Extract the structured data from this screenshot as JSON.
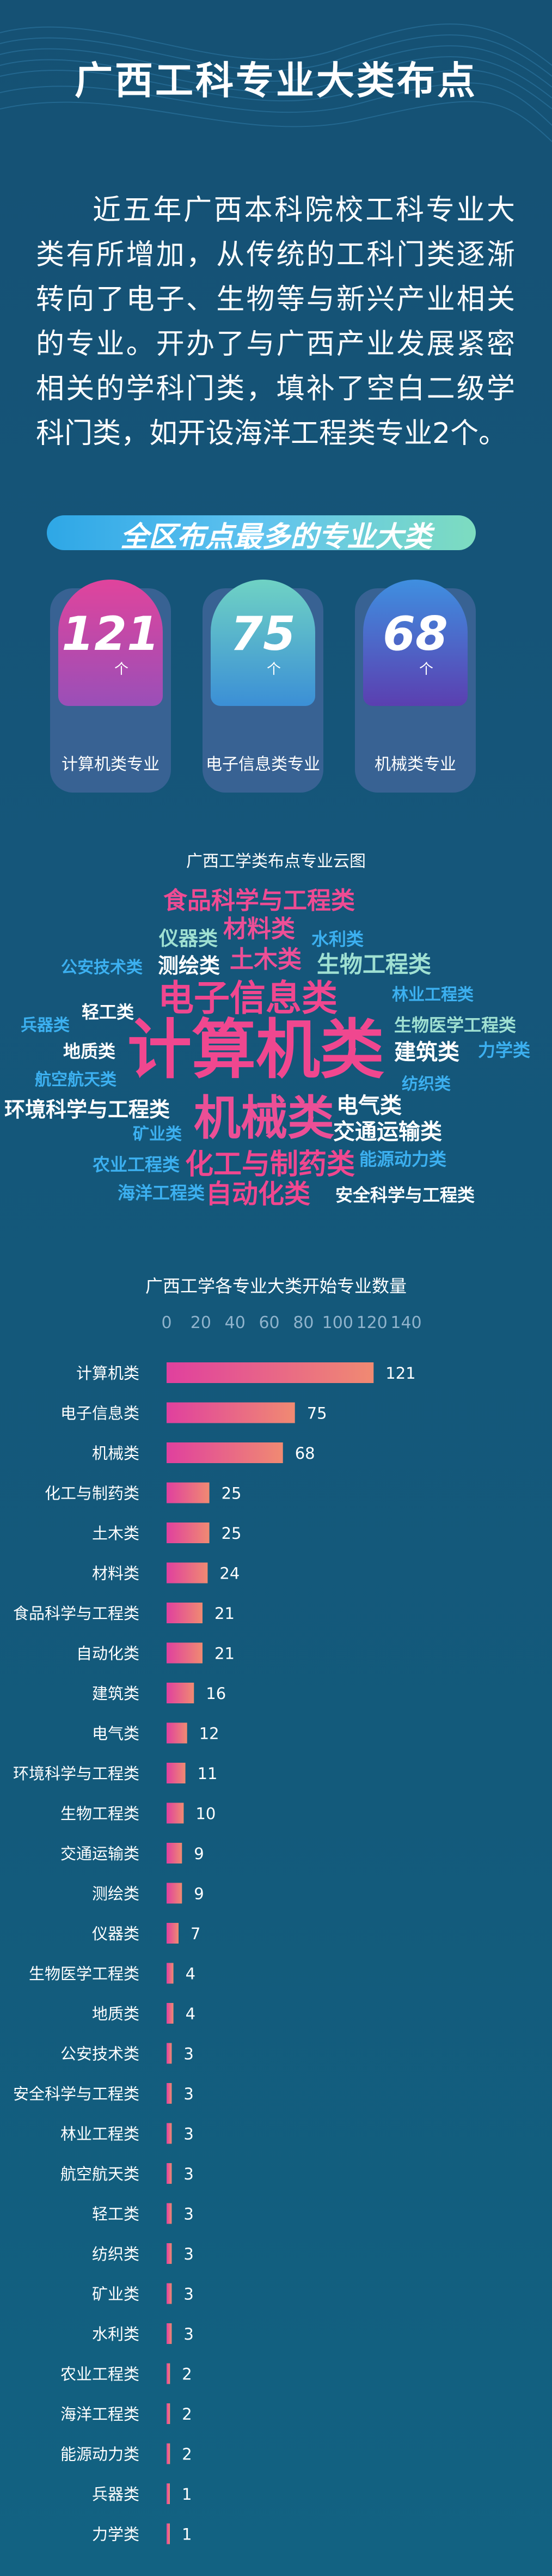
{
  "header": {
    "title": "广西工科专业大类布点"
  },
  "intro": {
    "text": "近五年广西本科院校工科专业大类有所增加，从传统的工科门类逐渐转向了电子、生物等与新兴产业相关的专业。开办了与广西产业发展紧密相关的学科门类，填补了空白二级学科门类，如开设海洋工程类专业2个。"
  },
  "highlight": {
    "heading": "全区布点最多的专业大类",
    "cards": [
      {
        "number": "121",
        "unit": "个",
        "label": "计算机类专业"
      },
      {
        "number": "75",
        "unit": "个",
        "label": "电子信息类专业"
      },
      {
        "number": "68",
        "unit": "个",
        "label": "机械类专业"
      }
    ]
  },
  "wordcloud": {
    "title": "广西工学类布点专业云图",
    "words": [
      "食品科学与工程类",
      "仪器类",
      "材料类",
      "水利类",
      "公安技术类",
      "测绘类",
      "土木类",
      "生物工程类",
      "轻工类",
      "兵器类",
      "电子信息类",
      "林业工程类",
      "地质类",
      "计算机类",
      "建筑类",
      "生物医学工程类",
      "力学类",
      "航空航天类",
      "纺织类",
      "环境科学与工程类",
      "机械类",
      "电气类",
      "矿业类",
      "交通运输类",
      "农业工程类",
      "化工与制药类",
      "能源动力类",
      "海洋工程类",
      "自动化类",
      "安全科学与工程类"
    ]
  },
  "chart_data": {
    "type": "bar",
    "title": "广西工学各专业大类开始专业数量",
    "orientation": "horizontal",
    "categories": [
      "计算机类",
      "电子信息类",
      "机械类",
      "化工与制药类",
      "土木类",
      "材料类",
      "食品科学与工程类",
      "自动化类",
      "建筑类",
      "电气类",
      "环境科学与工程类",
      "生物工程类",
      "交通运输类",
      "测绘类",
      "仪器类",
      "生物医学工程类",
      "地质类",
      "公安技术类",
      "安全科学与工程类",
      "林业工程类",
      "航空航天类",
      "轻工类",
      "纺织类",
      "矿业类",
      "水利类",
      "农业工程类",
      "海洋工程类",
      "能源动力类",
      "兵器类",
      "力学类"
    ],
    "values": [
      121,
      75,
      68,
      25,
      25,
      24,
      21,
      21,
      16,
      12,
      11,
      10,
      9,
      9,
      7,
      4,
      4,
      3,
      3,
      3,
      3,
      3,
      3,
      3,
      3,
      2,
      2,
      2,
      1,
      1
    ],
    "xlim": [
      0,
      140
    ],
    "xticks": [
      0,
      20,
      40,
      60,
      80,
      100,
      120,
      140
    ],
    "bar_gradient": [
      "#e0409e",
      "#f08a72"
    ]
  }
}
